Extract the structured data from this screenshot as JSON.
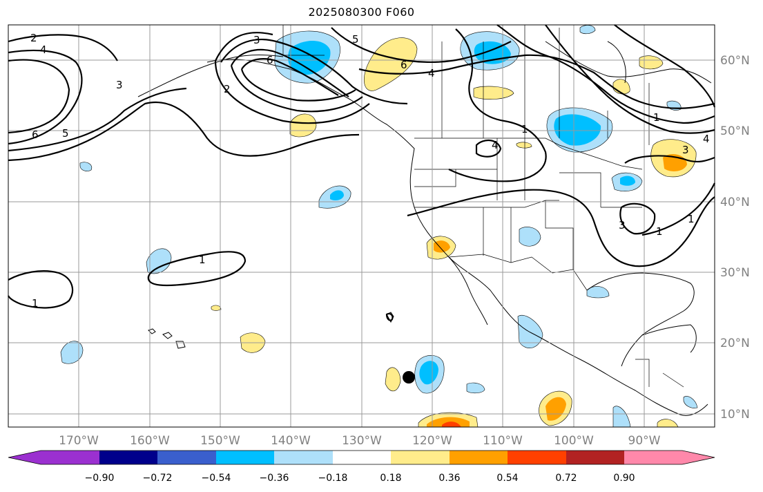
{
  "map": {
    "title": "2025080300 F060",
    "lon_labels": [
      "170°W",
      "160°W",
      "150°W",
      "140°W",
      "130°W",
      "120°W",
      "110°W",
      "100°W",
      "90°W"
    ],
    "lat_labels": [
      "60°N",
      "50°N",
      "40°N",
      "30°N",
      "20°N",
      "10°N"
    ],
    "contour_labels": [
      "2",
      "4",
      "6",
      "5",
      "3",
      "2",
      "1",
      "1",
      "6",
      "4",
      "3",
      "5",
      "6",
      "1",
      "4",
      "1",
      "3",
      "3",
      "1",
      "1",
      "4"
    ],
    "colorbar": {
      "tick_labels": [
        "−0.90",
        "−0.72",
        "−0.54",
        "−0.36",
        "−0.18",
        "0.18",
        "0.36",
        "0.54",
        "0.72",
        "0.90"
      ],
      "colors": [
        "#9b30d0",
        "#00008b",
        "#3a5fcd",
        "#00bfff",
        "#aee0fa",
        "#ffffff",
        "#ffec8b",
        "#ffa000",
        "#ff4000",
        "#b22222",
        "#ff88aa"
      ]
    }
  }
}
